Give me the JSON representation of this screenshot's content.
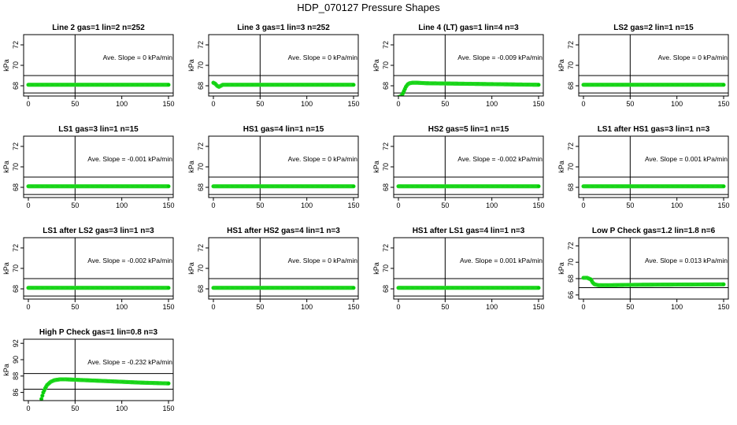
{
  "title": "HDP_070127  Pressure Shapes",
  "colors": {
    "series": "#00cc00",
    "series_edge": "#33dd33",
    "axes": "#000000"
  },
  "chart_data": [
    {
      "type": "scatter",
      "title": "Line 2 gas=1 lin=2 n=252",
      "ylabel": "kPa",
      "xlim": [
        0,
        150
      ],
      "ylim": [
        67,
        73
      ],
      "x_ticks": [
        0,
        50,
        100,
        150
      ],
      "y_ticks": [
        68,
        70,
        72
      ],
      "hlines": [
        69,
        67.3
      ],
      "vline": 50,
      "annotation": "Ave. Slope = 0 kPa/min",
      "series": [
        {
          "x": [
            0,
            150
          ],
          "y": [
            68.1,
            68.1
          ],
          "step": 1
        }
      ]
    },
    {
      "type": "scatter",
      "title": "Line 3 gas=1 lin=3 n=252",
      "ylabel": "kPa",
      "xlim": [
        0,
        150
      ],
      "ylim": [
        67,
        73
      ],
      "x_ticks": [
        0,
        50,
        100,
        150
      ],
      "y_ticks": [
        68,
        70,
        72
      ],
      "hlines": [
        69,
        67.3
      ],
      "vline": 50,
      "annotation": "Ave. Slope = 0 kPa/min",
      "series": [
        {
          "x": [
            0,
            2,
            4,
            6,
            8,
            10,
            150
          ],
          "y": [
            68.3,
            68.2,
            68.0,
            67.9,
            68.0,
            68.1,
            68.1
          ],
          "step": 1
        }
      ]
    },
    {
      "type": "scatter",
      "title": "Line 4 (LT) gas=1 lin=4 n=3",
      "ylabel": "kPa",
      "xlim": [
        0,
        150
      ],
      "ylim": [
        67,
        73
      ],
      "x_ticks": [
        0,
        50,
        100,
        150
      ],
      "y_ticks": [
        68,
        70,
        72
      ],
      "hlines": [
        69,
        67.3
      ],
      "vline": 50,
      "annotation": "Ave. Slope = -0.009 kPa/min",
      "series": [
        {
          "x": [
            0,
            2,
            4,
            6,
            8,
            10,
            12,
            15,
            20,
            30,
            150
          ],
          "y": [
            66.9,
            66.95,
            67.1,
            67.5,
            67.9,
            68.15,
            68.25,
            68.3,
            68.3,
            68.25,
            68.1
          ],
          "step": 1
        }
      ]
    },
    {
      "type": "scatter",
      "title": "LS2 gas=2 lin=1 n=15",
      "ylabel": "kPa",
      "xlim": [
        0,
        150
      ],
      "ylim": [
        67,
        73
      ],
      "x_ticks": [
        0,
        50,
        100,
        150
      ],
      "y_ticks": [
        68,
        70,
        72
      ],
      "hlines": [
        69,
        67.3
      ],
      "vline": 50,
      "annotation": "Ave. Slope = 0 kPa/min",
      "series": [
        {
          "x": [
            0,
            150
          ],
          "y": [
            68.1,
            68.1
          ],
          "step": 1
        }
      ]
    },
    {
      "type": "scatter",
      "title": "LS1 gas=3 lin=1 n=15",
      "ylabel": "kPa",
      "xlim": [
        0,
        150
      ],
      "ylim": [
        67,
        73
      ],
      "x_ticks": [
        0,
        50,
        100,
        150
      ],
      "y_ticks": [
        68,
        70,
        72
      ],
      "hlines": [
        69,
        67.3
      ],
      "vline": 50,
      "annotation": "Ave. Slope = -0.001 kPa/min",
      "series": [
        {
          "x": [
            0,
            150
          ],
          "y": [
            68.1,
            68.1
          ],
          "step": 1
        }
      ]
    },
    {
      "type": "scatter",
      "title": "HS1 gas=4 lin=1 n=15",
      "ylabel": "kPa",
      "xlim": [
        0,
        150
      ],
      "ylim": [
        67,
        73
      ],
      "x_ticks": [
        0,
        50,
        100,
        150
      ],
      "y_ticks": [
        68,
        70,
        72
      ],
      "hlines": [
        69,
        67.3
      ],
      "vline": 50,
      "annotation": "Ave. Slope = 0 kPa/min",
      "series": [
        {
          "x": [
            0,
            150
          ],
          "y": [
            68.1,
            68.1
          ],
          "step": 1
        }
      ]
    },
    {
      "type": "scatter",
      "title": "HS2 gas=5 lin=1 n=15",
      "ylabel": "kPa",
      "xlim": [
        0,
        150
      ],
      "ylim": [
        67,
        73
      ],
      "x_ticks": [
        0,
        50,
        100,
        150
      ],
      "y_ticks": [
        68,
        70,
        72
      ],
      "hlines": [
        69,
        67.3
      ],
      "vline": 50,
      "annotation": "Ave. Slope = -0.002 kPa/min",
      "series": [
        {
          "x": [
            0,
            150
          ],
          "y": [
            68.1,
            68.1
          ],
          "step": 1
        }
      ]
    },
    {
      "type": "scatter",
      "title": "LS1 after HS1 gas=3 lin=1 n=3",
      "ylabel": "kPa",
      "xlim": [
        0,
        150
      ],
      "ylim": [
        67,
        73
      ],
      "x_ticks": [
        0,
        50,
        100,
        150
      ],
      "y_ticks": [
        68,
        70,
        72
      ],
      "hlines": [
        69,
        67.3
      ],
      "vline": 50,
      "annotation": "Ave. Slope = 0.001 kPa/min",
      "series": [
        {
          "x": [
            0,
            150
          ],
          "y": [
            68.1,
            68.1
          ],
          "step": 1
        }
      ]
    },
    {
      "type": "scatter",
      "title": "LS1 after LS2 gas=3 lin=1 n=3",
      "ylabel": "kPa",
      "xlim": [
        0,
        150
      ],
      "ylim": [
        67,
        73
      ],
      "x_ticks": [
        0,
        50,
        100,
        150
      ],
      "y_ticks": [
        68,
        70,
        72
      ],
      "hlines": [
        69,
        67.3
      ],
      "vline": 50,
      "annotation": "Ave. Slope = -0.002 kPa/min",
      "series": [
        {
          "x": [
            0,
            150
          ],
          "y": [
            68.1,
            68.1
          ],
          "step": 1
        }
      ]
    },
    {
      "type": "scatter",
      "title": "HS1 after HS2 gas=4 lin=1 n=3",
      "ylabel": "kPa",
      "xlim": [
        0,
        150
      ],
      "ylim": [
        67,
        73
      ],
      "x_ticks": [
        0,
        50,
        100,
        150
      ],
      "y_ticks": [
        68,
        70,
        72
      ],
      "hlines": [
        69,
        67.3
      ],
      "vline": 50,
      "annotation": "Ave. Slope = 0 kPa/min",
      "series": [
        {
          "x": [
            0,
            150
          ],
          "y": [
            68.1,
            68.1
          ],
          "step": 1
        }
      ]
    },
    {
      "type": "scatter",
      "title": "HS1 after LS1 gas=4 lin=1 n=3",
      "ylabel": "kPa",
      "xlim": [
        0,
        150
      ],
      "ylim": [
        67,
        73
      ],
      "x_ticks": [
        0,
        50,
        100,
        150
      ],
      "y_ticks": [
        68,
        70,
        72
      ],
      "hlines": [
        69,
        67.3
      ],
      "vline": 50,
      "annotation": "Ave. Slope = 0.001 kPa/min",
      "series": [
        {
          "x": [
            0,
            150
          ],
          "y": [
            68.1,
            68.1
          ],
          "step": 1
        }
      ]
    },
    {
      "type": "scatter",
      "title": "Low P Check gas=1.2 lin=1.8 n=6",
      "ylabel": "kPa",
      "xlim": [
        0,
        150
      ],
      "ylim": [
        65.5,
        73
      ],
      "x_ticks": [
        0,
        50,
        100,
        150
      ],
      "y_ticks": [
        66,
        68,
        70,
        72
      ],
      "hlines": [
        68.0,
        66.9
      ],
      "vline": 50,
      "annotation": "Ave. Slope = 0.013 kPa/min",
      "series": [
        {
          "x": [
            0,
            4,
            8,
            10,
            12,
            16,
            30,
            60,
            150
          ],
          "y": [
            68.1,
            68.1,
            67.9,
            67.5,
            67.3,
            67.2,
            67.2,
            67.25,
            67.3
          ],
          "step": 1
        }
      ]
    },
    {
      "type": "scatter",
      "title": "High P Check gas=1 lin=0.8 n=3",
      "ylabel": "kPa",
      "xlim": [
        0,
        150
      ],
      "ylim": [
        85,
        92.5
      ],
      "x_ticks": [
        0,
        50,
        100,
        150
      ],
      "y_ticks": [
        86,
        88,
        90,
        92
      ],
      "hlines": [
        88.3,
        86.4
      ],
      "vline": 50,
      "annotation": "Ave. Slope = -0.232 kPa/min",
      "series": [
        {
          "x": [
            14,
            16,
            18,
            20,
            24,
            28,
            34,
            40,
            60,
            90,
            120,
            150
          ],
          "y": [
            85.2,
            86.0,
            86.5,
            86.9,
            87.3,
            87.5,
            87.6,
            87.6,
            87.5,
            87.35,
            87.2,
            87.1
          ],
          "step": 1
        }
      ]
    }
  ]
}
